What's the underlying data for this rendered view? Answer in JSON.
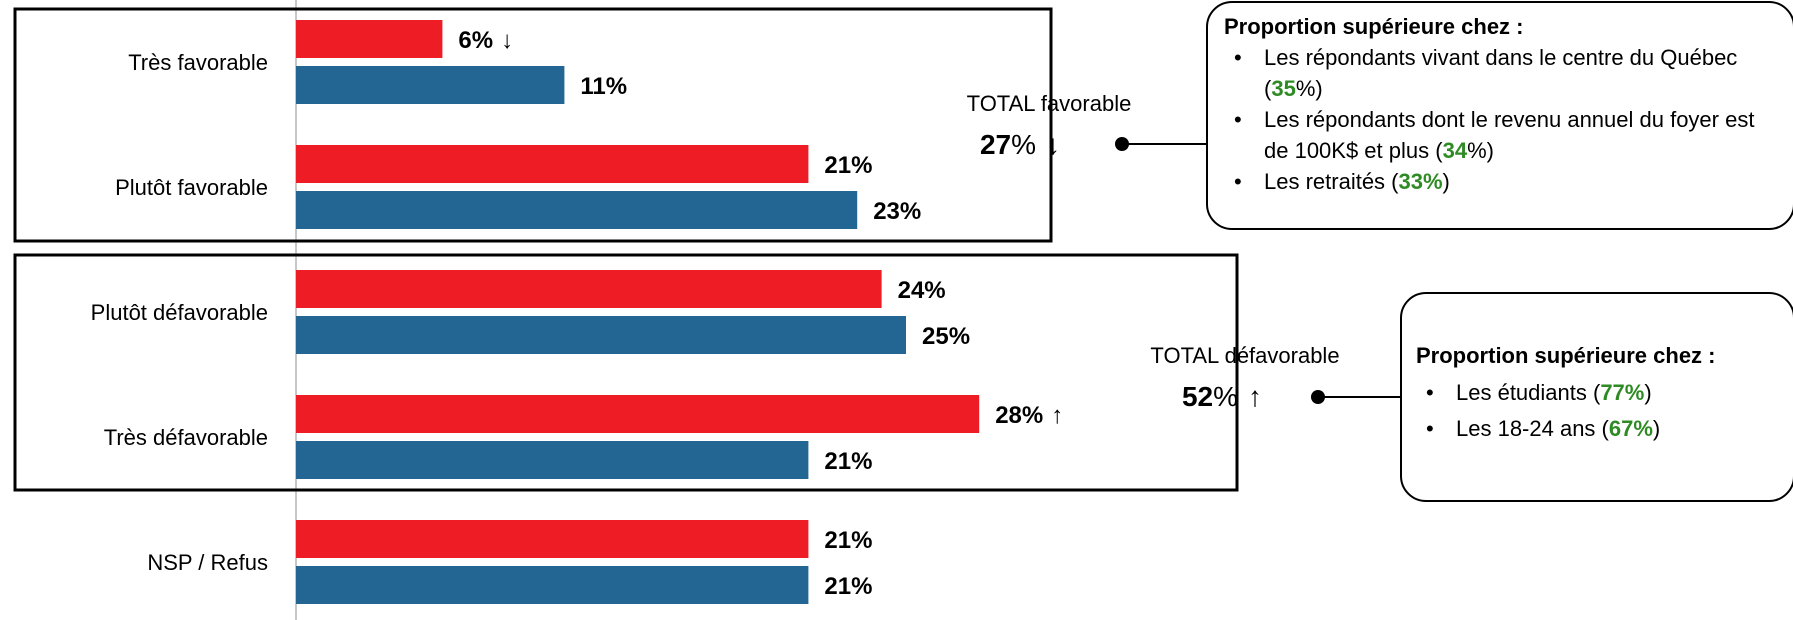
{
  "chart_data": {
    "type": "bar",
    "orientation": "horizontal",
    "categories": [
      "Très favorable",
      "Plutôt favorable",
      "Plutôt défavorable",
      "Très défavorable",
      "NSP / Refus"
    ],
    "series": [
      {
        "color": "#ee1c25",
        "values": [
          6,
          21,
          24,
          28,
          21
        ]
      },
      {
        "color": "#236593",
        "values": [
          11,
          23,
          25,
          21,
          21
        ]
      }
    ],
    "value_labels": [
      [
        "6%",
        "21%",
        "24%",
        "28%",
        "21%"
      ],
      [
        "11%",
        "23%",
        "25%",
        "21%",
        "21%"
      ]
    ],
    "trend_markers": [
      {
        "category": "Très favorable",
        "series": 0,
        "direction": "down"
      },
      {
        "category": "Très défavorable",
        "series": 0,
        "direction": "up"
      }
    ],
    "xlim": [
      0,
      30
    ],
    "grid": false
  },
  "totals": {
    "favorable": {
      "label": "TOTAL favorable",
      "value": "27",
      "unit": "%",
      "direction": "down"
    },
    "defavorable": {
      "label": "TOTAL défavorable",
      "value": "52",
      "unit": "%",
      "direction": "up"
    }
  },
  "callouts": {
    "favorable": {
      "heading": "Proportion supérieure chez :",
      "items": [
        {
          "before": "Les répondants vivant dans le centre du Québec (",
          "pct": "35",
          "after": "%)"
        },
        {
          "before": "Les répondants dont le revenu annuel du foyer est de 100K$ et plus (",
          "pct": "34",
          "after": "%)"
        },
        {
          "before": "Les retraités (",
          "pct": "33%",
          "after": ")"
        }
      ]
    },
    "defavorable": {
      "heading": "Proportion supérieure chez :",
      "items": [
        {
          "before": "Les étudiants (",
          "pct": "77%",
          "after": ")"
        },
        {
          "before": "Les 18-24 ans (",
          "pct": "67%",
          "after": ")"
        }
      ]
    }
  },
  "arrows": {
    "down": "↓",
    "up": "↑",
    "bullet": "•"
  }
}
